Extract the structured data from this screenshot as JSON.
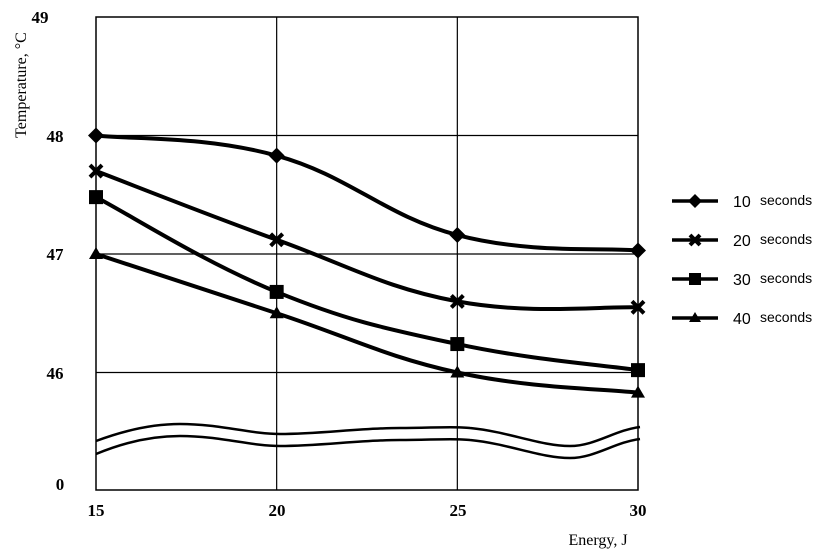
{
  "chart_data": {
    "type": "line",
    "x": [
      15,
      20,
      25,
      30
    ],
    "xticks": [
      "15",
      "20",
      "25",
      "30"
    ],
    "yticks": [
      "0",
      "46",
      "47",
      "48",
      "49"
    ],
    "xlabel": "Energy, J",
    "ylabel": "Temperature, °C",
    "ylim": [
      46,
      49
    ],
    "axis_break": true,
    "grid": true,
    "legend_position": "right",
    "series": [
      {
        "name_num": "10",
        "name_unit": "seconds",
        "marker": "diamond",
        "values": [
          48.0,
          47.83,
          47.16,
          47.03
        ]
      },
      {
        "name_num": "20",
        "name_unit": "seconds",
        "marker": "cross",
        "values": [
          47.7,
          47.12,
          46.6,
          46.55
        ]
      },
      {
        "name_num": "30",
        "name_unit": "seconds",
        "marker": "square",
        "values": [
          47.48,
          46.68,
          46.24,
          46.02
        ]
      },
      {
        "name_num": "40",
        "name_unit": "seconds",
        "marker": "triangle",
        "values": [
          47.0,
          46.5,
          46.0,
          45.83
        ]
      }
    ],
    "colors": {
      "line": "#000000",
      "grid": "#000000",
      "background": "#ffffff"
    }
  }
}
